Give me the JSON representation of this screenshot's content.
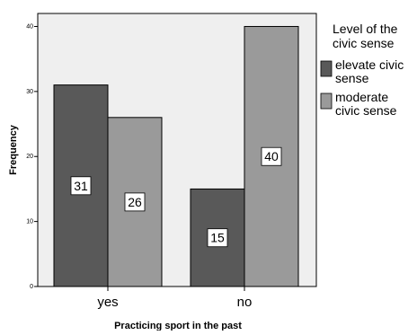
{
  "chart_data": {
    "type": "bar",
    "categories": [
      "yes",
      "no"
    ],
    "series": [
      {
        "name": "elevate civic sense",
        "values": [
          31,
          15
        ],
        "color": "#595959"
      },
      {
        "name": "moderate civic sense",
        "values": [
          26,
          40
        ],
        "color": "#9a9a9a"
      }
    ],
    "xlabel": "Practicing sport in the past",
    "ylabel": "Frequency",
    "ylim": [
      0,
      42
    ],
    "yticks": [
      0,
      10,
      20,
      30,
      40
    ],
    "legend_title": "Level of the civic sense",
    "legend_position": "right",
    "grid": false,
    "plot_background": "#efefef"
  }
}
